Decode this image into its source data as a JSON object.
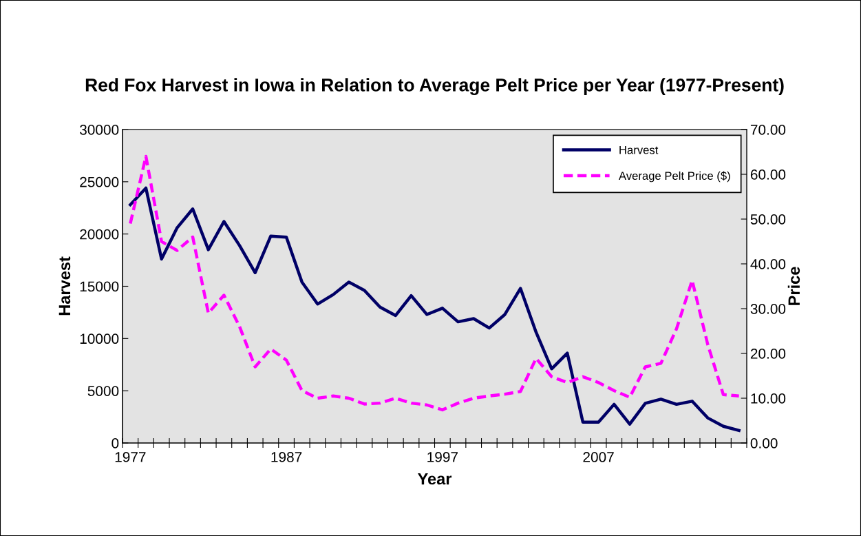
{
  "chart_data": {
    "type": "line",
    "title": "Red Fox Harvest in Iowa in Relation to Average Pelt Price per Year (1977-Present)",
    "xlabel": "Year",
    "ylabel": "Harvest",
    "y2label": "Price",
    "categories": [
      "1977",
      null,
      null,
      null,
      null,
      null,
      null,
      null,
      null,
      null,
      "1987",
      null,
      null,
      null,
      null,
      null,
      null,
      null,
      null,
      null,
      "1997",
      null,
      null,
      null,
      null,
      null,
      null,
      null,
      null,
      null,
      "2007",
      null,
      null,
      null,
      null,
      null,
      null,
      null,
      null,
      null
    ],
    "series": [
      {
        "name": "Harvest",
        "color": "#000066",
        "line_style": "solid",
        "values": [
          22800,
          24400,
          17600,
          20600,
          22400,
          18500,
          21200,
          18900,
          16300,
          19800,
          19700,
          15400,
          13300,
          14200,
          15400,
          14600,
          13000,
          12200,
          14100,
          12300,
          12900,
          11600,
          11900,
          11000,
          12300,
          14800,
          10600,
          7100,
          8600,
          2000,
          2000,
          3700,
          1800,
          3800,
          4200,
          3700,
          4000,
          2400,
          1600,
          1200
        ]
      },
      {
        "name": "Average Pelt Price ($)",
        "color": "#ff00ff",
        "line_style": "dashed",
        "axis": "y2",
        "values": [
          49,
          64,
          45,
          43,
          46,
          29,
          33,
          26,
          17,
          21,
          18.5,
          11.7,
          10,
          10.5,
          10,
          8.7,
          8.9,
          10,
          8.9,
          8.5,
          7.4,
          8.9,
          10,
          10.5,
          10.9,
          11.5,
          18.9,
          14.8,
          13.5,
          14.8,
          13.5,
          11.7,
          10.2,
          17,
          17.8,
          25.5,
          36.3,
          22,
          10.8,
          10.5
        ]
      }
    ],
    "ylim": [
      0,
      30000
    ],
    "yticks": [
      0,
      5000,
      10000,
      15000,
      20000,
      25000,
      30000
    ],
    "y2lim": [
      0,
      70
    ],
    "y2ticks": [
      {
        "value": 0,
        "label": "0.00"
      },
      {
        "value": 10,
        "label": "10.00"
      },
      {
        "value": 20,
        "label": "20.00"
      },
      {
        "value": 30,
        "label": "30.00"
      },
      {
        "value": 40,
        "label": "40.00"
      },
      {
        "value": 50,
        "label": "50.00"
      },
      {
        "value": 60,
        "label": "60.00"
      },
      {
        "value": 70,
        "label": "70.00"
      }
    ],
    "grid": false,
    "legend": "top right",
    "marker": "none"
  }
}
